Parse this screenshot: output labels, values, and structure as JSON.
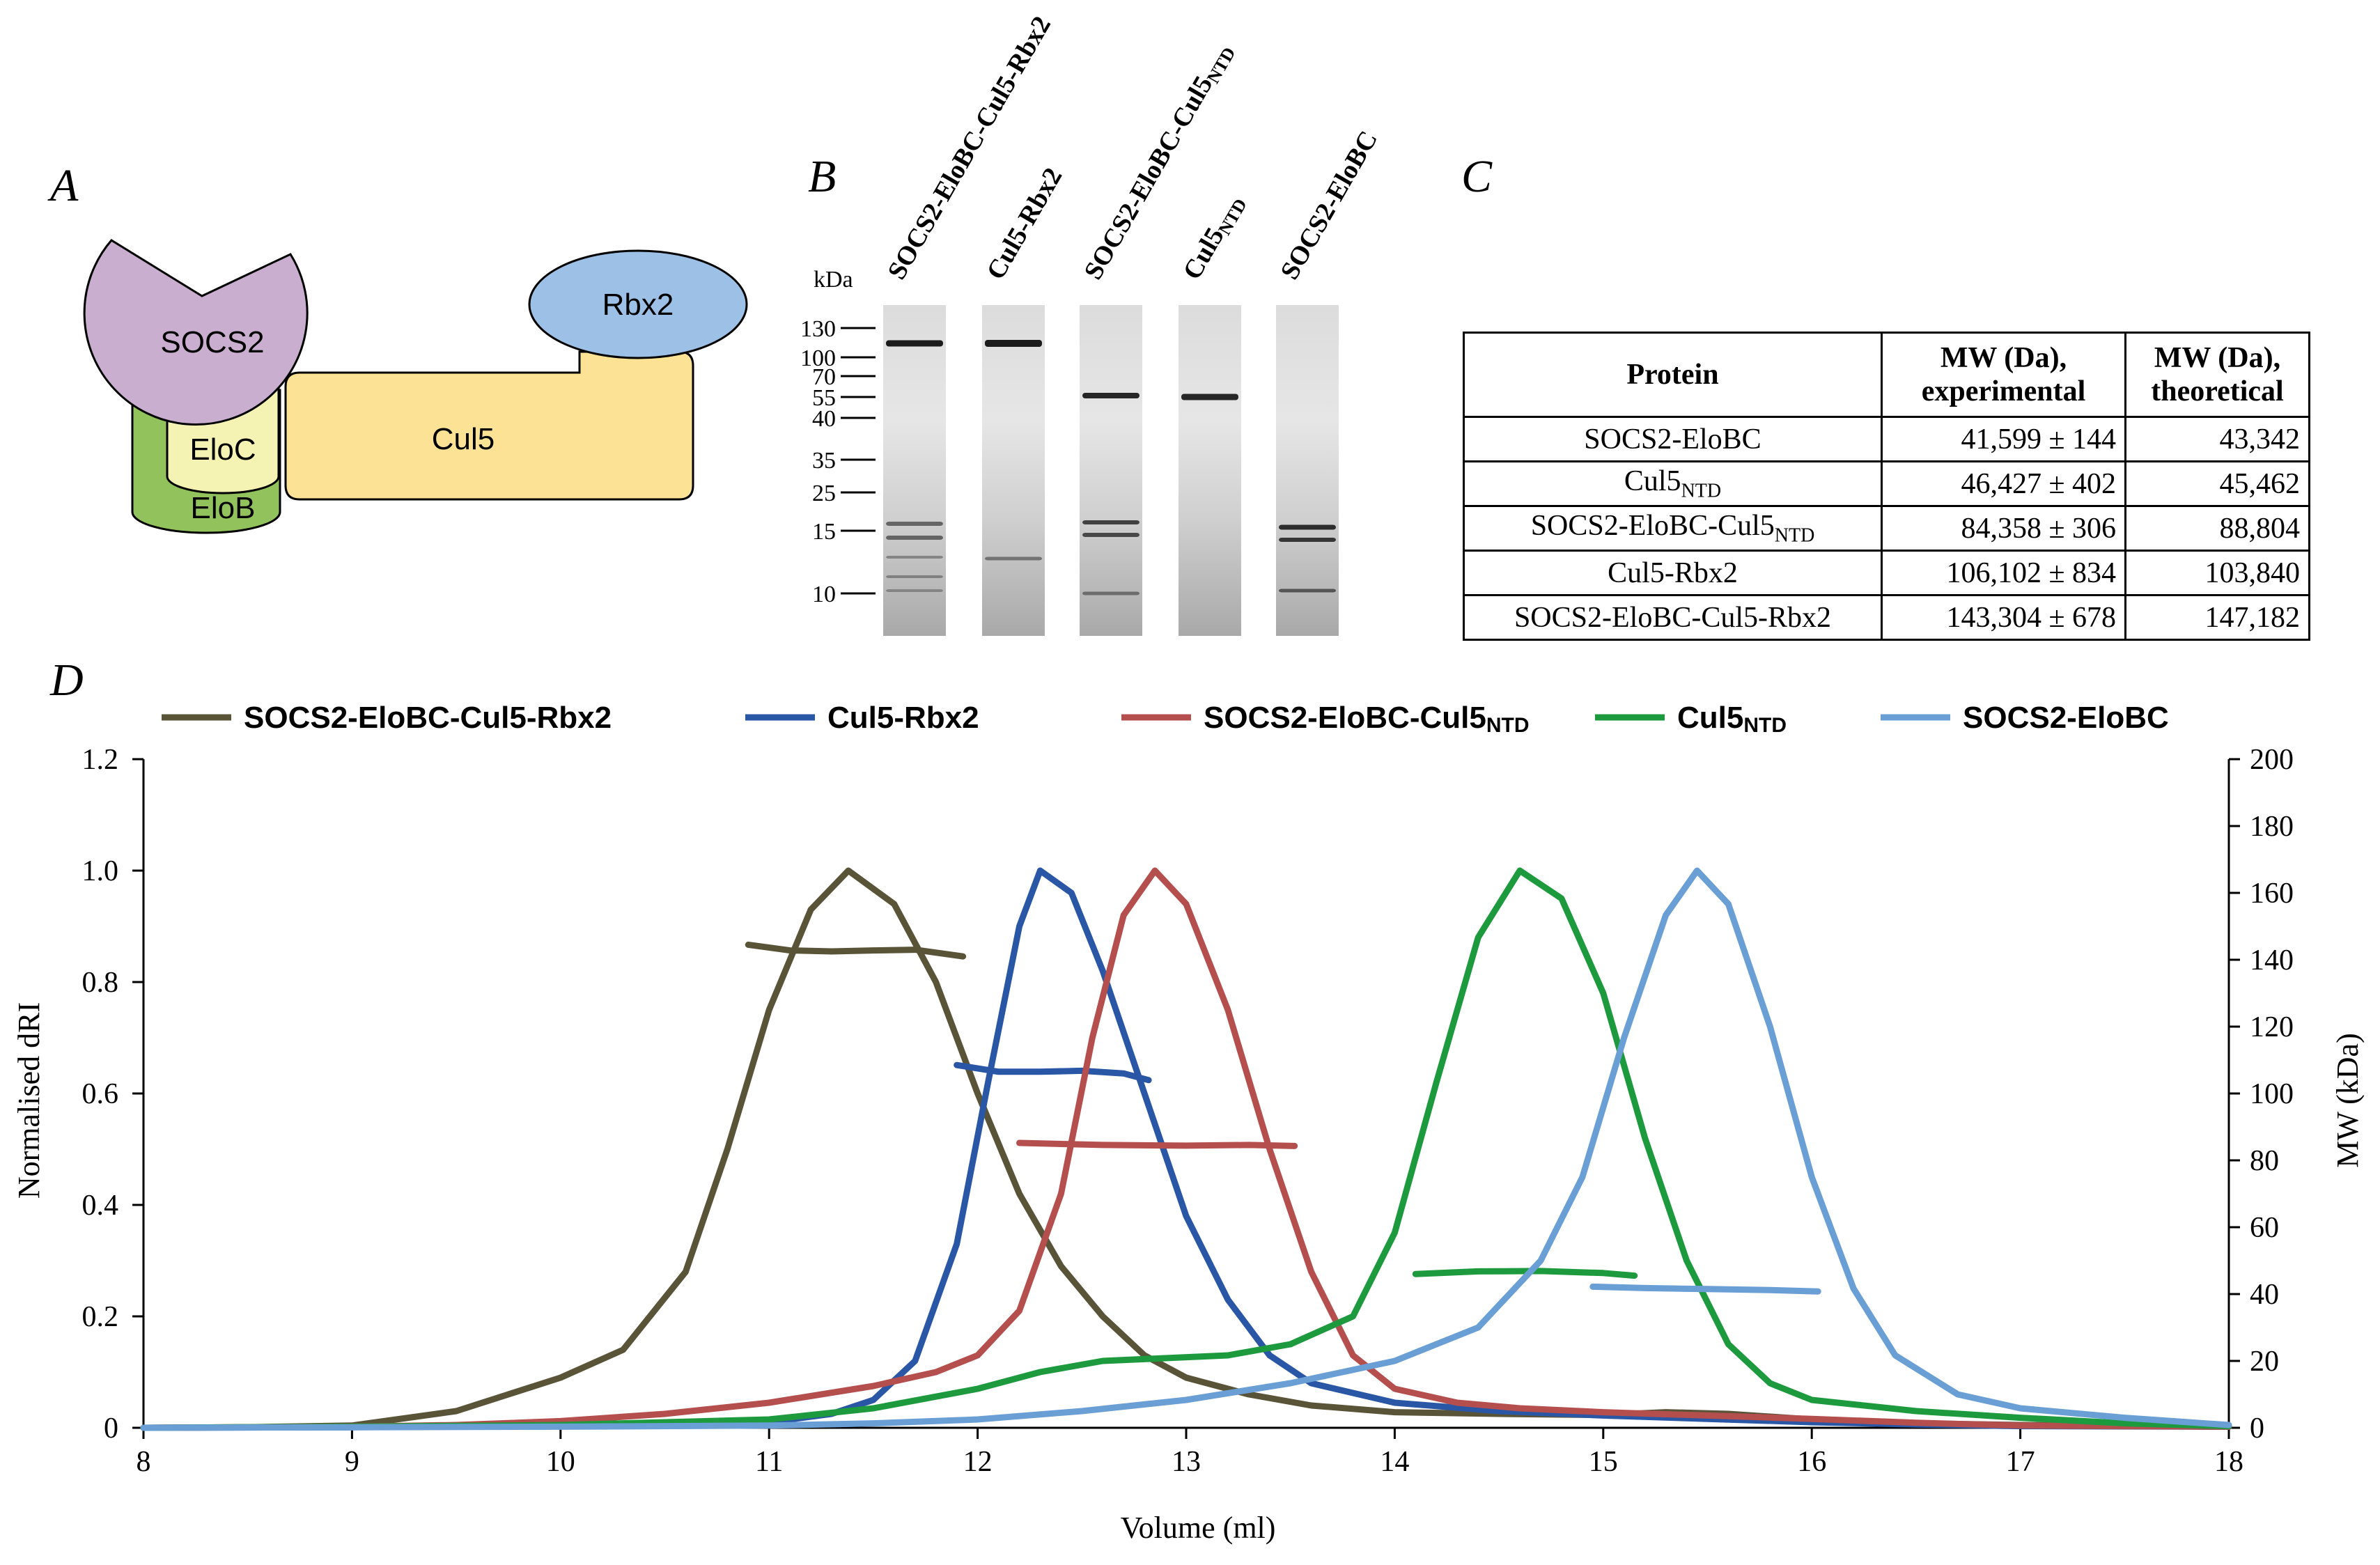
{
  "panels": {
    "a": "A",
    "b": "B",
    "c": "C",
    "d": "D"
  },
  "schematic": {
    "labels": [
      {
        "key": "socs2",
        "text": "SOCS2",
        "color": "#c9aed0"
      },
      {
        "key": "elob",
        "text": "EloB",
        "color": "#92c25c"
      },
      {
        "key": "eloc",
        "text": "EloC",
        "color": "#f4f3b4"
      },
      {
        "key": "cul5",
        "text": "Cul5",
        "color": "#fbe295"
      },
      {
        "key": "rbx2",
        "text": "Rbx2",
        "color": "#9dc1e6"
      }
    ]
  },
  "gel": {
    "unit": "kDa",
    "markers": [
      "130",
      "100",
      "70",
      "55",
      "40",
      "35",
      "25",
      "15",
      "10"
    ],
    "lanes": [
      {
        "label": "SOCS2-EloBC-Cul5-Rbx2",
        "base": "SOCS2-EloBC-Cul5-Rbx2",
        "sub": ""
      },
      {
        "label": "Cul5-Rbx2",
        "base": "Cul5-Rbx2",
        "sub": ""
      },
      {
        "label": "SOCS2-EloBC-Cul5NTD",
        "base": "SOCS2-EloBC-Cul5",
        "sub": "NTD"
      },
      {
        "label": "Cul5NTD",
        "base": "Cul5",
        "sub": "NTD"
      },
      {
        "label": "SOCS2-EloBC",
        "base": "SOCS2-EloBC",
        "sub": ""
      }
    ]
  },
  "table": {
    "headers": {
      "protein": "Protein",
      "exp_line1": "MW (Da),",
      "exp_line2": "experimental",
      "theo_line1": "MW (Da),",
      "theo_line2": "theoretical"
    },
    "rows": [
      {
        "base": "SOCS2-EloBC",
        "sub": "",
        "experimental": "41,599 ± 144",
        "theoretical": "43,342"
      },
      {
        "base": "Cul5",
        "sub": "NTD",
        "experimental": "46,427 ± 402",
        "theoretical": "45,462"
      },
      {
        "base": "SOCS2-EloBC-Cul5",
        "sub": "NTD",
        "experimental": "84,358 ± 306",
        "theoretical": "88,804"
      },
      {
        "base": "Cul5-Rbx2",
        "sub": "",
        "experimental": "106,102 ± 834",
        "theoretical": "103,840"
      },
      {
        "base": "SOCS2-EloBC-Cul5-Rbx2",
        "sub": "",
        "experimental": "143,304 ± 678",
        "theoretical": "147,182"
      }
    ]
  },
  "chart_data": {
    "type": "line",
    "xlabel": "Volume (ml)",
    "ylabel": "Normalised dRI",
    "y2label": "MW (kDa)",
    "xlim": [
      8,
      18
    ],
    "ylim": [
      0,
      1.2
    ],
    "y2lim": [
      0,
      200
    ],
    "x_ticks": [
      "8",
      "9",
      "10",
      "11",
      "12",
      "13",
      "14",
      "15",
      "16",
      "17",
      "18"
    ],
    "y_ticks": [
      "0",
      "0.2",
      "0.4",
      "0.6",
      "0.8",
      "1.0",
      "1.2"
    ],
    "y2_ticks": [
      "0",
      "20",
      "40",
      "60",
      "80",
      "100",
      "120",
      "140",
      "160",
      "180",
      "200"
    ],
    "legend_position": "top",
    "grid": false,
    "series": [
      {
        "name": "SOCS2-EloBC-Cul5-Rbx2",
        "base": "SOCS2-EloBC-Cul5-Rbx2",
        "sub": "",
        "color": "#595437",
        "dri": [
          [
            8,
            0
          ],
          [
            8.5,
            0.001
          ],
          [
            9,
            0.004
          ],
          [
            9.5,
            0.03
          ],
          [
            10,
            0.09
          ],
          [
            10.3,
            0.14
          ],
          [
            10.6,
            0.28
          ],
          [
            10.8,
            0.5
          ],
          [
            11,
            0.75
          ],
          [
            11.2,
            0.93
          ],
          [
            11.38,
            1.0
          ],
          [
            11.6,
            0.94
          ],
          [
            11.8,
            0.8
          ],
          [
            12,
            0.6
          ],
          [
            12.2,
            0.42
          ],
          [
            12.4,
            0.29
          ],
          [
            12.6,
            0.2
          ],
          [
            12.8,
            0.13
          ],
          [
            13,
            0.09
          ],
          [
            13.3,
            0.06
          ],
          [
            13.6,
            0.04
          ],
          [
            14,
            0.028
          ],
          [
            14.5,
            0.025
          ],
          [
            15,
            0.023
          ],
          [
            15.3,
            0.028
          ],
          [
            15.6,
            0.025
          ],
          [
            16,
            0.015
          ],
          [
            16.5,
            0.008
          ],
          [
            17,
            0.005
          ],
          [
            18,
            0.002
          ]
        ],
        "mw": [
          [
            10.9,
            144.5
          ],
          [
            11.1,
            142.8
          ],
          [
            11.3,
            142.5
          ],
          [
            11.5,
            142.8
          ],
          [
            11.7,
            143
          ],
          [
            11.93,
            141
          ]
        ]
      },
      {
        "name": "Cul5-Rbx2",
        "base": "Cul5-Rbx2",
        "sub": "",
        "color": "#2a56a6",
        "dri": [
          [
            8,
            0
          ],
          [
            9,
            0.001
          ],
          [
            10,
            0.003
          ],
          [
            11,
            0.01
          ],
          [
            11.3,
            0.025
          ],
          [
            11.5,
            0.05
          ],
          [
            11.7,
            0.12
          ],
          [
            11.9,
            0.33
          ],
          [
            12.05,
            0.62
          ],
          [
            12.2,
            0.9
          ],
          [
            12.3,
            1.0
          ],
          [
            12.45,
            0.96
          ],
          [
            12.6,
            0.82
          ],
          [
            12.8,
            0.6
          ],
          [
            13,
            0.38
          ],
          [
            13.2,
            0.23
          ],
          [
            13.4,
            0.13
          ],
          [
            13.6,
            0.08
          ],
          [
            14,
            0.045
          ],
          [
            14.5,
            0.03
          ],
          [
            15,
            0.022
          ],
          [
            15.5,
            0.016
          ],
          [
            16,
            0.01
          ],
          [
            16.5,
            0.006
          ],
          [
            17,
            0.003
          ],
          [
            18,
            0.002
          ]
        ],
        "mw": [
          [
            11.9,
            108.5
          ],
          [
            12.1,
            106.5
          ],
          [
            12.3,
            106.5
          ],
          [
            12.5,
            106.8
          ],
          [
            12.7,
            106
          ],
          [
            12.82,
            104
          ]
        ]
      },
      {
        "name": "SOCS2-EloBC-Cul5NTD",
        "base": "SOCS2-EloBC-Cul5",
        "sub": "NTD",
        "color": "#b44f4e",
        "dri": [
          [
            8,
            0
          ],
          [
            9,
            0.002
          ],
          [
            9.5,
            0.005
          ],
          [
            10,
            0.012
          ],
          [
            10.5,
            0.025
          ],
          [
            11,
            0.045
          ],
          [
            11.5,
            0.075
          ],
          [
            11.8,
            0.1
          ],
          [
            12,
            0.13
          ],
          [
            12.2,
            0.21
          ],
          [
            12.4,
            0.42
          ],
          [
            12.55,
            0.7
          ],
          [
            12.7,
            0.92
          ],
          [
            12.85,
            1.0
          ],
          [
            13,
            0.94
          ],
          [
            13.2,
            0.75
          ],
          [
            13.4,
            0.5
          ],
          [
            13.6,
            0.28
          ],
          [
            13.8,
            0.13
          ],
          [
            14,
            0.07
          ],
          [
            14.3,
            0.045
          ],
          [
            14.6,
            0.035
          ],
          [
            15,
            0.028
          ],
          [
            15.5,
            0.022
          ],
          [
            16,
            0.016
          ],
          [
            16.5,
            0.009
          ],
          [
            17,
            0.004
          ],
          [
            18,
            0.002
          ]
        ],
        "mw": [
          [
            12.2,
            85.2
          ],
          [
            12.6,
            84.6
          ],
          [
            13,
            84.4
          ],
          [
            13.3,
            84.6
          ],
          [
            13.52,
            84.3
          ]
        ]
      },
      {
        "name": "Cul5NTD",
        "base": "Cul5",
        "sub": "NTD",
        "color": "#1e9a3e",
        "dri": [
          [
            8,
            0
          ],
          [
            9,
            0.002
          ],
          [
            10,
            0.005
          ],
          [
            11,
            0.015
          ],
          [
            11.5,
            0.035
          ],
          [
            12,
            0.07
          ],
          [
            12.3,
            0.1
          ],
          [
            12.6,
            0.12
          ],
          [
            12.9,
            0.125
          ],
          [
            13.2,
            0.13
          ],
          [
            13.5,
            0.15
          ],
          [
            13.8,
            0.2
          ],
          [
            14,
            0.35
          ],
          [
            14.2,
            0.62
          ],
          [
            14.4,
            0.88
          ],
          [
            14.6,
            1.0
          ],
          [
            14.8,
            0.95
          ],
          [
            15,
            0.78
          ],
          [
            15.2,
            0.52
          ],
          [
            15.4,
            0.3
          ],
          [
            15.6,
            0.15
          ],
          [
            15.8,
            0.08
          ],
          [
            16,
            0.05
          ],
          [
            16.5,
            0.03
          ],
          [
            17,
            0.018
          ],
          [
            17.5,
            0.008
          ],
          [
            18,
            0.003
          ]
        ],
        "mw": [
          [
            14.1,
            46
          ],
          [
            14.4,
            46.8
          ],
          [
            14.7,
            46.9
          ],
          [
            15,
            46.3
          ],
          [
            15.15,
            45.5
          ]
        ]
      },
      {
        "name": "SOCS2-EloBC",
        "base": "SOCS2-EloBC",
        "sub": "",
        "color": "#6a9fd6",
        "dri": [
          [
            8,
            0
          ],
          [
            9,
            0.001
          ],
          [
            10,
            0.002
          ],
          [
            11,
            0.004
          ],
          [
            11.5,
            0.008
          ],
          [
            12,
            0.015
          ],
          [
            12.5,
            0.03
          ],
          [
            13,
            0.05
          ],
          [
            13.5,
            0.08
          ],
          [
            14,
            0.12
          ],
          [
            14.4,
            0.18
          ],
          [
            14.7,
            0.3
          ],
          [
            14.9,
            0.45
          ],
          [
            15.1,
            0.7
          ],
          [
            15.3,
            0.92
          ],
          [
            15.45,
            1.0
          ],
          [
            15.6,
            0.94
          ],
          [
            15.8,
            0.72
          ],
          [
            16,
            0.45
          ],
          [
            16.2,
            0.25
          ],
          [
            16.4,
            0.13
          ],
          [
            16.7,
            0.06
          ],
          [
            17,
            0.035
          ],
          [
            17.5,
            0.018
          ],
          [
            18,
            0.005
          ]
        ],
        "mw": [
          [
            14.95,
            42.2
          ],
          [
            15.2,
            41.8
          ],
          [
            15.5,
            41.5
          ],
          [
            15.8,
            41.2
          ],
          [
            16.03,
            40.8
          ]
        ]
      }
    ]
  }
}
